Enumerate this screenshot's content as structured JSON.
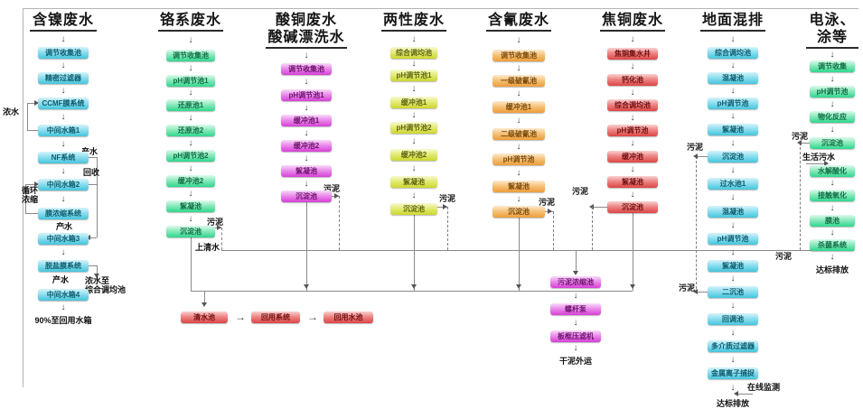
{
  "columns": [
    {
      "title": "含镍废水",
      "steps": [
        "调节收集池",
        "精密过滤器",
        "CCMF膜系统",
        "中间水箱1",
        "NF系统",
        "中间水箱2",
        "膜浓缩系统",
        "中间水箱3",
        "脱盐膜系统",
        "中间水箱4"
      ],
      "terminal": "90%至回用水箱"
    },
    {
      "title": "铬系废水",
      "steps": [
        "调节收集池",
        "pH调节池1",
        "还原池1",
        "还原池2",
        "pH调节池2",
        "缓冲池2",
        "絮凝池",
        "沉淀池"
      ]
    },
    {
      "title": "酸铜废水",
      "title2": "酸碱漂洗水",
      "steps": [
        "调节收集池",
        "pH调节池1",
        "缓冲池1",
        "缓冲池2",
        "絮凝池",
        "沉淀池"
      ]
    },
    {
      "title": "两性废水",
      "steps": [
        "综合调均池",
        "pH调节池1",
        "缓冲池1",
        "pH调节池2",
        "缓冲池2",
        "絮凝池",
        "沉淀池"
      ]
    },
    {
      "title": "含氰废水",
      "steps": [
        "调节收集池",
        "一级破氰池",
        "缓冲池1",
        "二级破氰池",
        "pH调节池",
        "絮凝池",
        "沉淀池"
      ]
    },
    {
      "title": "焦铜废水",
      "steps": [
        "焦铜集水井",
        "钙化池",
        "综合调均池",
        "pH调节池",
        "缓冲池",
        "絮凝池",
        "沉淀池"
      ]
    },
    {
      "title": "地面混排",
      "steps": [
        "综合调均池",
        "混凝池",
        "pH调节池",
        "絮凝池",
        "沉淀池",
        "过水池1",
        "混凝池",
        "pH调节池",
        "絮凝池",
        "二沉池",
        "回调池",
        "多介质过滤器",
        "金属离子捕捉"
      ],
      "terminal": "达标排放"
    },
    {
      "title": "电泳、",
      "title2": "涂等",
      "steps": [
        "调节收集",
        "pH调节池",
        "物化反应",
        "沉淀池",
        "水解酸化",
        "接触氧化",
        "膜池",
        "杀菌系统"
      ],
      "terminal": "达标排放"
    }
  ],
  "sludge_chain": {
    "steps": [
      "污泥浓缩池",
      "螺杆泵",
      "板框压滤机"
    ],
    "terminal": "干泥外运"
  },
  "reuse_chain": {
    "steps": [
      "清水池",
      "回用系统",
      "回用水池"
    ]
  },
  "annotations": {
    "sludge": "污泥",
    "supernatant": "上清水",
    "product_water": "产水",
    "recycle": "回收",
    "concentrate": "浓水",
    "circulation_concentrate": "循环\n浓缩",
    "concentrate_to_tank": "浓水至\n综合调均池",
    "domestic_sewage": "生活污水",
    "online_monitoring": "在线监测"
  },
  "palette": {
    "nickel_cyan": "#45c4da",
    "chrome_green": "#2fd68c",
    "copper_magenta": "#d63fd6",
    "amphoteric_yellow": "#ccd62e",
    "cyanide_orange": "#ed9d39",
    "coke_red": "#dc4545",
    "line_gray": "#8a8a8a"
  }
}
